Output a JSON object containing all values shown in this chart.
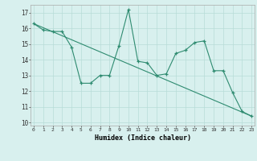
{
  "line1_x": [
    0,
    1,
    2,
    3,
    4,
    5,
    6,
    7,
    8,
    9,
    10,
    11,
    12,
    13,
    14,
    15,
    16,
    17,
    18,
    19,
    20,
    21,
    22,
    23
  ],
  "line1_y": [
    16.3,
    15.9,
    15.8,
    15.8,
    14.8,
    12.5,
    12.5,
    13.0,
    13.0,
    14.9,
    17.2,
    13.9,
    13.8,
    13.0,
    13.1,
    14.4,
    14.6,
    15.1,
    15.2,
    13.3,
    13.3,
    11.9,
    10.7,
    10.4
  ],
  "line2_x": [
    0,
    23
  ],
  "line2_y": [
    16.3,
    10.4
  ],
  "color": "#2e8b70",
  "bg_color": "#d8f0ee",
  "grid_color": "#b8dcd8",
  "xlabel": "Humidex (Indice chaleur)",
  "yticks": [
    10,
    11,
    12,
    13,
    14,
    15,
    16,
    17
  ],
  "xticks": [
    0,
    1,
    2,
    3,
    4,
    5,
    6,
    7,
    8,
    9,
    10,
    11,
    12,
    13,
    14,
    15,
    16,
    17,
    18,
    19,
    20,
    21,
    22,
    23
  ],
  "xlim": [
    -0.3,
    23.3
  ],
  "ylim": [
    9.8,
    17.5
  ]
}
